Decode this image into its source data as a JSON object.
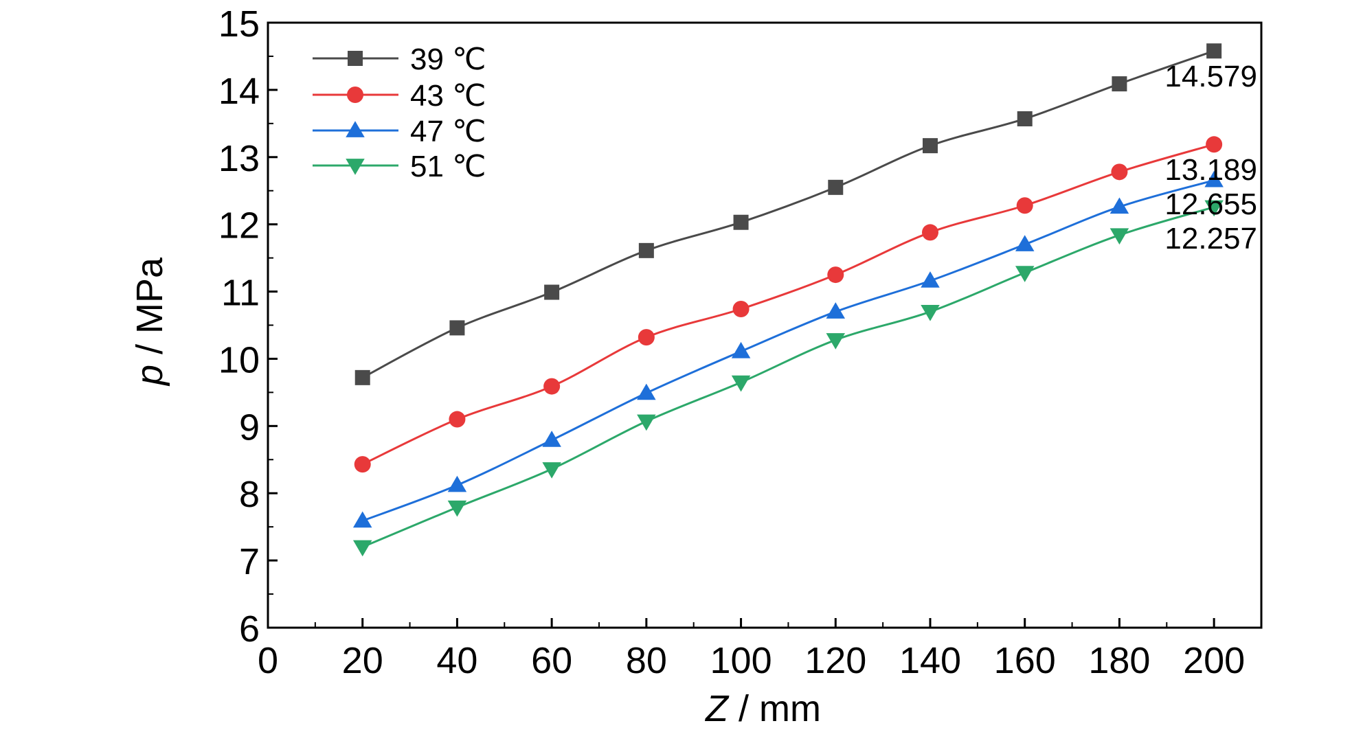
{
  "chart_data": {
    "type": "line",
    "xlabel_var": "Z",
    "xlabel_unit": " / mm",
    "ylabel_var": "p",
    "ylabel_unit": " / MPa",
    "xlim": [
      0,
      210
    ],
    "ylim": [
      6,
      15
    ],
    "xticks": [
      0,
      20,
      40,
      60,
      80,
      100,
      120,
      140,
      160,
      180,
      200
    ],
    "yticks": [
      6,
      7,
      8,
      9,
      10,
      11,
      12,
      13,
      14,
      15
    ],
    "grid": false,
    "legend_position": "top-left",
    "x": [
      20,
      40,
      60,
      80,
      100,
      120,
      140,
      160,
      180,
      200
    ],
    "series": [
      {
        "name": "39 ℃",
        "color": "#4a4a4a",
        "marker": "square",
        "values": [
          9.72,
          10.46,
          10.99,
          11.61,
          12.03,
          12.55,
          13.17,
          13.57,
          14.09,
          14.579
        ]
      },
      {
        "name": "43 ℃",
        "color": "#e8393a",
        "marker": "circle",
        "values": [
          8.43,
          9.1,
          9.59,
          10.32,
          10.74,
          11.25,
          11.88,
          12.28,
          12.78,
          13.189
        ]
      },
      {
        "name": "47 ℃",
        "color": "#1e6fd9",
        "marker": "triangle-up",
        "values": [
          7.59,
          8.12,
          8.79,
          9.49,
          10.11,
          10.7,
          11.16,
          11.7,
          12.26,
          12.655
        ]
      },
      {
        "name": "51 ℃",
        "color": "#2ca86a",
        "marker": "triangle-down",
        "values": [
          7.2,
          7.79,
          8.36,
          9.07,
          9.65,
          10.28,
          10.7,
          11.28,
          11.84,
          12.257
        ]
      }
    ],
    "annotations": [
      {
        "text": "14.579",
        "x": 200,
        "y": 14.579
      },
      {
        "text": "13.189",
        "x": 200,
        "y": 13.189
      },
      {
        "text": "12.655",
        "x": 200,
        "y": 12.655
      },
      {
        "text": "12.257",
        "x": 200,
        "y": 12.257
      }
    ]
  }
}
